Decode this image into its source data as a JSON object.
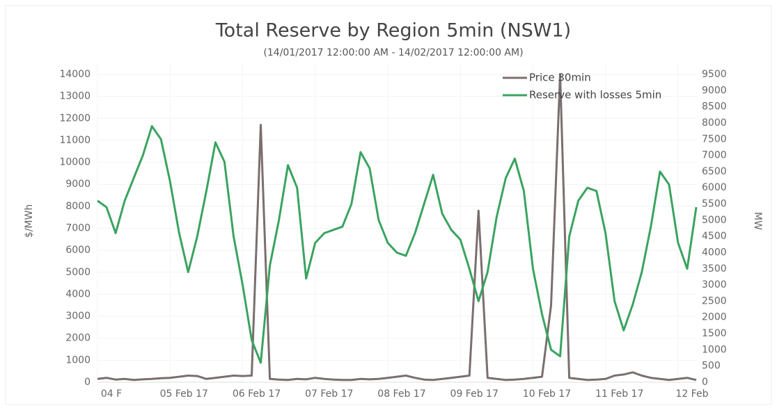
{
  "chart_data": {
    "type": "line",
    "title": "Total Reserve by Region 5min (NSW1)",
    "subtitle": "(14/01/2017 12:00:00 AM - 14/02/2017 12:00:00 AM)",
    "y_label": "$/MWh",
    "y2_label": "MW",
    "categories": [
      "04 F",
      null,
      null,
      null,
      null,
      null,
      null,
      null,
      "05 Feb 17",
      null,
      null,
      null,
      null,
      null,
      null,
      null,
      "06 Feb 17",
      null,
      null,
      null,
      null,
      null,
      null,
      null,
      "07 Feb 17",
      null,
      null,
      null,
      null,
      null,
      null,
      null,
      "08 Feb 17",
      null,
      null,
      null,
      null,
      null,
      null,
      null,
      "09 Feb 17",
      null,
      null,
      null,
      null,
      null,
      null,
      null,
      "10 Feb 17",
      null,
      null,
      null,
      null,
      null,
      null,
      null,
      "11 Feb 17",
      null,
      null,
      null,
      null,
      null,
      null,
      null,
      "12 Feb",
      null,
      null
    ],
    "series": [
      {
        "name": "Price 30min",
        "color": "#7a6e6e",
        "axis": "y",
        "values": [
          150,
          200,
          120,
          150,
          100,
          130,
          150,
          180,
          200,
          250,
          300,
          280,
          150,
          200,
          250,
          300,
          280,
          300,
          11700,
          150,
          120,
          100,
          150,
          130,
          200,
          150,
          120,
          100,
          100,
          150,
          130,
          150,
          200,
          250,
          300,
          200,
          120,
          100,
          150,
          200,
          250,
          300,
          7800,
          200,
          150,
          100,
          120,
          150,
          200,
          250,
          3500,
          14000,
          200,
          150,
          100,
          120,
          150,
          300,
          350,
          450,
          300,
          200,
          150,
          100,
          150,
          200,
          100
        ]
      },
      {
        "name": "Reserve with losses 5min",
        "color": "#3aa35f",
        "axis": "y2",
        "values": [
          5600,
          5400,
          4600,
          5600,
          6300,
          7000,
          7900,
          7500,
          6200,
          4600,
          3400,
          4500,
          5900,
          7400,
          6800,
          4500,
          3000,
          1300,
          600,
          3600,
          5000,
          6700,
          6000,
          3200,
          4300,
          4600,
          4700,
          4800,
          5500,
          7100,
          6600,
          5000,
          4300,
          4000,
          3900,
          4600,
          5500,
          6400,
          5200,
          4700,
          4400,
          3500,
          2500,
          3400,
          5100,
          6300,
          6900,
          5900,
          3500,
          2100,
          1000,
          800,
          4500,
          5600,
          6000,
          5900,
          4600,
          2500,
          1600,
          2400,
          3400,
          4800,
          6500,
          6100,
          4300,
          3500,
          5400
        ]
      }
    ],
    "ylim": [
      0,
      14000
    ],
    "yticks": [
      0,
      1000,
      2000,
      3000,
      4000,
      5000,
      6000,
      7000,
      8000,
      9000,
      10000,
      11000,
      12000,
      13000,
      14000
    ],
    "y2lim": [
      0,
      9500
    ],
    "y2ticks": [
      0,
      500,
      1000,
      1500,
      2000,
      2500,
      3000,
      3500,
      4000,
      4500,
      5000,
      5500,
      6000,
      6500,
      7000,
      7500,
      8000,
      8500,
      9000,
      9500
    ],
    "grid": true,
    "legend": "top-right"
  }
}
